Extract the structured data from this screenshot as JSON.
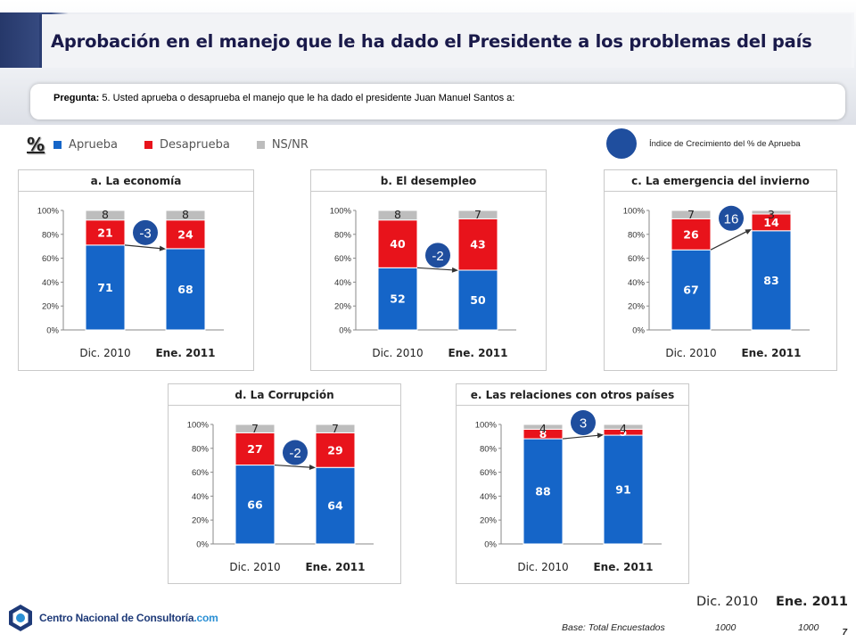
{
  "header": {
    "title": "Aprobación en el manejo que le ha dado el Presidente a los problemas del país"
  },
  "question": {
    "label": "Pregunta:",
    "text": " 5. Usted aprueba o desaprueba el manejo que le ha dado el    presidente Juan Manuel Santos a:"
  },
  "legend": {
    "percent_symbol": "%",
    "items": [
      {
        "label": "Aprueba",
        "color": "#1565c8"
      },
      {
        "label": "Desaprueba",
        "color": "#e8131b"
      },
      {
        "label": "NS/NR",
        "color": "#bdbdbd"
      }
    ]
  },
  "growth_index_label": "Índice de Crecimiento del % de Aprueba",
  "colors": {
    "aprueba": "#1565c8",
    "desaprueba": "#e8131b",
    "nsnr": "#bdbdbd",
    "badge": "#1f4e9e"
  },
  "chart_data": [
    {
      "type": "bar",
      "stacked": true,
      "title": "a. La economía",
      "categories": [
        "Dic. 2010",
        "Ene. 2011"
      ],
      "series": [
        {
          "name": "Aprueba",
          "values": [
            71,
            68
          ]
        },
        {
          "name": "Desaprueba",
          "values": [
            21,
            24
          ]
        },
        {
          "name": "NS/NR",
          "values": [
            8,
            8
          ]
        }
      ],
      "growth_index": "-3",
      "yticks": [
        "0%",
        "20%",
        "40%",
        "60%",
        "80%",
        "100%"
      ],
      "ylim": [
        0,
        100
      ]
    },
    {
      "type": "bar",
      "stacked": true,
      "title": "b. El desempleo",
      "categories": [
        "Dic. 2010",
        "Ene. 2011"
      ],
      "series": [
        {
          "name": "Aprueba",
          "values": [
            52,
            50
          ]
        },
        {
          "name": "Desaprueba",
          "values": [
            40,
            43
          ]
        },
        {
          "name": "NS/NR",
          "values": [
            8,
            7
          ]
        }
      ],
      "growth_index": "-2",
      "yticks": [
        "0%",
        "20%",
        "40%",
        "60%",
        "80%",
        "100%"
      ],
      "ylim": [
        0,
        100
      ]
    },
    {
      "type": "bar",
      "stacked": true,
      "title": "c. La emergencia del invierno",
      "categories": [
        "Dic. 2010",
        "Ene. 2011"
      ],
      "series": [
        {
          "name": "Aprueba",
          "values": [
            67,
            83
          ]
        },
        {
          "name": "Desaprueba",
          "values": [
            26,
            14
          ]
        },
        {
          "name": "NS/NR",
          "values": [
            7,
            3
          ]
        }
      ],
      "growth_index": "16",
      "yticks": [
        "0%",
        "20%",
        "40%",
        "60%",
        "80%",
        "100%"
      ],
      "ylim": [
        0,
        100
      ]
    },
    {
      "type": "bar",
      "stacked": true,
      "title": "d. La Corrupción",
      "categories": [
        "Dic. 2010",
        "Ene. 2011"
      ],
      "series": [
        {
          "name": "Aprueba",
          "values": [
            66,
            64
          ]
        },
        {
          "name": "Desaprueba",
          "values": [
            27,
            29
          ]
        },
        {
          "name": "NS/NR",
          "values": [
            7,
            7
          ]
        }
      ],
      "growth_index": "-2",
      "yticks": [
        "0%",
        "20%",
        "40%",
        "60%",
        "80%",
        "100%"
      ],
      "ylim": [
        0,
        100
      ]
    },
    {
      "type": "bar",
      "stacked": true,
      "title": "e. Las relaciones con otros países",
      "categories": [
        "Dic. 2010",
        "Ene. 2011"
      ],
      "series": [
        {
          "name": "Aprueba",
          "values": [
            88,
            91
          ]
        },
        {
          "name": "Desaprueba",
          "values": [
            8,
            5
          ]
        },
        {
          "name": "NS/NR",
          "values": [
            4,
            4
          ]
        }
      ],
      "growth_index": "3",
      "yticks": [
        "0%",
        "20%",
        "40%",
        "60%",
        "80%",
        "100%"
      ],
      "ylim": [
        0,
        100
      ]
    }
  ],
  "footer": {
    "year1": "Dic. 2010",
    "year2": "Ene. 2011",
    "base_label": "Base: Total Encuestados",
    "base_n1": "1000",
    "base_n2": "1000",
    "page_number": "7",
    "logo_text": "Centro Nacional de Consultoría",
    "logo_com": ".com"
  }
}
